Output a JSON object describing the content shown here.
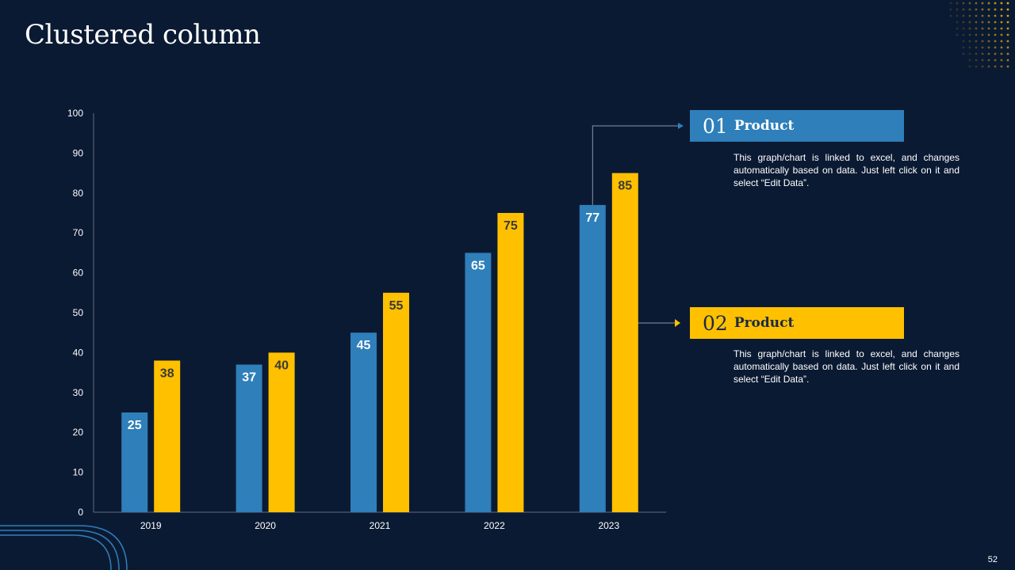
{
  "slide": {
    "title": "Clustered column",
    "page_number": "52"
  },
  "colors": {
    "background": "#0b1a33",
    "series1": "#2e7fba",
    "series2": "#ffc000",
    "axis": "#5f6b80"
  },
  "legend": [
    {
      "number": "01",
      "label": "Product",
      "description": "This graph/chart is linked to excel, and changes automatically based on data. Just left click on it and select “Edit Data”."
    },
    {
      "number": "02",
      "label": "Product",
      "description": "This graph/chart is linked to excel, and changes automatically based on data. Just left click on it and select “Edit Data”."
    }
  ],
  "chart_data": {
    "type": "bar",
    "categories": [
      "2019",
      "2020",
      "2021",
      "2022",
      "2023"
    ],
    "series": [
      {
        "name": "Product 01",
        "values": [
          25,
          37,
          45,
          65,
          77
        ]
      },
      {
        "name": "Product 02",
        "values": [
          38,
          40,
          55,
          75,
          85
        ]
      }
    ],
    "ylim": [
      0,
      100
    ],
    "yticks": [
      0,
      10,
      20,
      30,
      40,
      50,
      60,
      70,
      80,
      90,
      100
    ],
    "title": "",
    "xlabel": "",
    "ylabel": "",
    "grid": false,
    "data_labels": true
  }
}
